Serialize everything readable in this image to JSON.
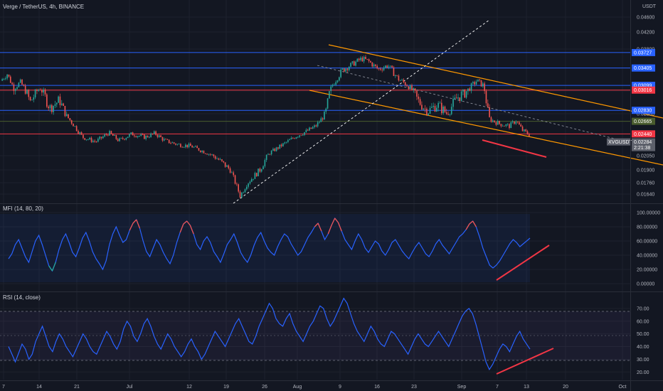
{
  "header": {
    "symbol_title": "Verge / TetherUS, 4h, BINANCE",
    "currency": "USDT"
  },
  "colors": {
    "background": "#131722",
    "grid": "#1e222d",
    "up": "#26a69a",
    "down": "#ef5350",
    "blue_level": "#2962ff",
    "red_level": "#f23645",
    "green_level": "#4a5c2e",
    "channel": "#ff9800",
    "osc_line": "#2962ff"
  },
  "chart_data": [
    {
      "type": "candlestick",
      "name": "price",
      "xlabels": [
        "7",
        "14",
        "21",
        "Jul",
        "12",
        "19",
        "26",
        "Aug",
        "9",
        "16",
        "23",
        "Sep",
        "7",
        "13",
        "20",
        "Oct"
      ],
      "y_ticks": [
        0.046,
        0.042,
        0.038,
        0.034,
        0.03,
        0.028,
        0.0205,
        0.019,
        0.0176,
        0.0164
      ],
      "y_tick_labels": [
        "0.04600",
        "0.04200",
        "0.03800",
        "0.03400",
        "0.03000",
        "0.02800",
        "0.02050",
        "0.01900",
        "0.01760",
        "0.01640"
      ],
      "ylim": [
        0.0155,
        0.049
      ],
      "ohlc_path": [
        [
          0,
          0.0318
        ],
        [
          2,
          0.033
        ],
        [
          4,
          0.0305
        ],
        [
          6,
          0.0315
        ],
        [
          9,
          0.029
        ],
        [
          12,
          0.0305
        ],
        [
          15,
          0.0285
        ],
        [
          18,
          0.0292
        ],
        [
          22,
          0.0262
        ],
        [
          25,
          0.0238
        ],
        [
          29,
          0.023
        ],
        [
          33,
          0.0246
        ],
        [
          36,
          0.0232
        ],
        [
          40,
          0.0244
        ],
        [
          44,
          0.0238
        ],
        [
          47,
          0.0245
        ],
        [
          50,
          0.0232
        ],
        [
          54,
          0.0225
        ],
        [
          58,
          0.0222
        ],
        [
          62,
          0.0212
        ],
        [
          66,
          0.0202
        ],
        [
          70,
          0.019
        ],
        [
          73,
          0.0162
        ],
        [
          75,
          0.0175
        ],
        [
          79,
          0.019
        ],
        [
          82,
          0.021
        ],
        [
          86,
          0.0225
        ],
        [
          90,
          0.024
        ],
        [
          93,
          0.0248
        ],
        [
          96,
          0.0258
        ],
        [
          99,
          0.028
        ],
        [
          101,
          0.031
        ],
        [
          104,
          0.0336
        ],
        [
          107,
          0.0348
        ],
        [
          110,
          0.036
        ],
        [
          112,
          0.0355
        ],
        [
          115,
          0.0338
        ],
        [
          118,
          0.0346
        ],
        [
          121,
          0.0322
        ],
        [
          124,
          0.031
        ],
        [
          127,
          0.0292
        ],
        [
          130,
          0.0282
        ],
        [
          133,
          0.0288
        ],
        [
          136,
          0.028
        ],
        [
          139,
          0.0294
        ],
        [
          142,
          0.03
        ],
        [
          145,
          0.0318
        ],
        [
          147,
          0.031
        ],
        [
          149,
          0.027
        ],
        [
          152,
          0.0262
        ],
        [
          155,
          0.0258
        ],
        [
          157,
          0.0268
        ],
        [
          159,
          0.025
        ],
        [
          161,
          0.0243
        ]
      ],
      "horizontal_levels": [
        {
          "value": 0.03727,
          "label": "0.03727",
          "color": "#2962ff"
        },
        {
          "value": 0.03405,
          "label": "0.03405",
          "color": "#2962ff"
        },
        {
          "value": 0.03099,
          "label": "0.03099",
          "color": "#2962ff"
        },
        {
          "value": 0.03016,
          "label": "0.03016",
          "color": "#f23645"
        },
        {
          "value": 0.0283,
          "label": "0.02830",
          "color": "#2962ff"
        },
        {
          "value": 0.02665,
          "label": "0.02665",
          "color": "#4a5c2e"
        },
        {
          "value": 0.0244,
          "label": "0.02440",
          "color": "#f23645"
        }
      ],
      "current_price": {
        "symbol": "XVGUSDT",
        "value": "0.02284",
        "countdown": "2:21:38"
      }
    },
    {
      "type": "line",
      "name": "MFI",
      "title": "MFI (14, 80, 20)",
      "y_ticks": [
        0,
        20,
        40,
        60,
        80,
        100
      ],
      "y_tick_labels": [
        "0.00000",
        "20.00000",
        "40.00000",
        "60.00000",
        "80.00000",
        "100.00000"
      ],
      "ylim": [
        -5,
        107
      ],
      "bands": [
        80,
        20
      ],
      "values": [
        35,
        42,
        55,
        62,
        50,
        38,
        30,
        45,
        60,
        68,
        55,
        40,
        25,
        18,
        30,
        48,
        62,
        70,
        58,
        44,
        38,
        50,
        64,
        72,
        60,
        45,
        35,
        28,
        20,
        32,
        55,
        70,
        80,
        68,
        58,
        62,
        75,
        85,
        90,
        78,
        60,
        45,
        38,
        50,
        62,
        55,
        44,
        35,
        28,
        40,
        58,
        72,
        84,
        88,
        82,
        70,
        55,
        48,
        60,
        66,
        58,
        45,
        38,
        30,
        42,
        55,
        62,
        70,
        58,
        44,
        36,
        30,
        40,
        54,
        65,
        72,
        60,
        50,
        44,
        40,
        52,
        62,
        70,
        66,
        56,
        48,
        40,
        45,
        55,
        65,
        72,
        80,
        85,
        74,
        62,
        70,
        82,
        92,
        86,
        74,
        62,
        55,
        48,
        60,
        70,
        62,
        50,
        44,
        52,
        60,
        56,
        46,
        40,
        48,
        58,
        62,
        54,
        46,
        40,
        35,
        44,
        52,
        58,
        50,
        42,
        38,
        46,
        56,
        62,
        54,
        48,
        42,
        50,
        58,
        66,
        70,
        76,
        84,
        88,
        80,
        66,
        50,
        38,
        26,
        22,
        26,
        32,
        40,
        48,
        56,
        62,
        58,
        52,
        56,
        60,
        64
      ]
    },
    {
      "type": "line",
      "name": "RSI",
      "title": "RSI (14, close)",
      "y_ticks": [
        20,
        30,
        40,
        50,
        60,
        70
      ],
      "y_tick_labels": [
        "20.00",
        "30.00",
        "40.00",
        "50.00",
        "60.00",
        "70.00"
      ],
      "ylim": [
        14,
        80
      ],
      "bands": [
        70,
        30
      ],
      "values": [
        40,
        34,
        28,
        35,
        42,
        38,
        30,
        34,
        44,
        50,
        56,
        48,
        40,
        36,
        44,
        50,
        46,
        40,
        36,
        32,
        38,
        44,
        50,
        46,
        40,
        36,
        34,
        40,
        46,
        52,
        48,
        42,
        38,
        44,
        54,
        60,
        56,
        48,
        44,
        50,
        58,
        62,
        56,
        48,
        42,
        38,
        44,
        50,
        46,
        40,
        36,
        32,
        36,
        42,
        46,
        40,
        36,
        30,
        34,
        40,
        46,
        52,
        48,
        44,
        40,
        46,
        52,
        58,
        62,
        56,
        50,
        44,
        42,
        48,
        56,
        62,
        68,
        74,
        70,
        62,
        58,
        56,
        62,
        66,
        58,
        52,
        48,
        44,
        50,
        56,
        60,
        66,
        72,
        70,
        62,
        56,
        60,
        66,
        72,
        78,
        74,
        66,
        58,
        52,
        48,
        44,
        50,
        56,
        52,
        46,
        42,
        40,
        46,
        52,
        50,
        46,
        42,
        38,
        34,
        40,
        46,
        50,
        46,
        42,
        40,
        44,
        48,
        52,
        48,
        44,
        40,
        46,
        52,
        58,
        64,
        68,
        70,
        66,
        58,
        48,
        38,
        28,
        22,
        26,
        32,
        38,
        42,
        40,
        36,
        42,
        48,
        52,
        46,
        42,
        38
      ]
    }
  ],
  "x_axis_labels": [
    "7",
    "14",
    "21",
    "Jul",
    "12",
    "19",
    "26",
    "Aug",
    "9",
    "16",
    "23",
    "Sep",
    "7",
    "13",
    "20",
    "Oct"
  ],
  "price_axis_tags": {
    "current_symbol": "XVGUSDT",
    "current_value": "0.02284",
    "countdown": "2:21:38"
  }
}
